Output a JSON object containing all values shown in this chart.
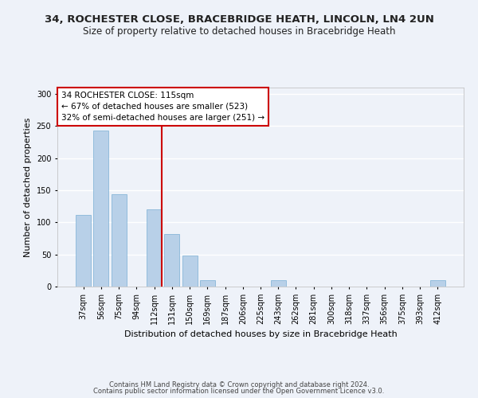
{
  "title1": "34, ROCHESTER CLOSE, BRACEBRIDGE HEATH, LINCOLN, LN4 2UN",
  "title2": "Size of property relative to detached houses in Bracebridge Heath",
  "xlabel": "Distribution of detached houses by size in Bracebridge Heath",
  "ylabel": "Number of detached properties",
  "footer1": "Contains HM Land Registry data © Crown copyright and database right 2024.",
  "footer2": "Contains public sector information licensed under the Open Government Licence v3.0.",
  "categories": [
    "37sqm",
    "56sqm",
    "75sqm",
    "94sqm",
    "112sqm",
    "131sqm",
    "150sqm",
    "169sqm",
    "187sqm",
    "206sqm",
    "225sqm",
    "243sqm",
    "262sqm",
    "281sqm",
    "300sqm",
    "318sqm",
    "337sqm",
    "356sqm",
    "375sqm",
    "393sqm",
    "412sqm"
  ],
  "values": [
    111,
    243,
    144,
    0,
    120,
    82,
    48,
    10,
    0,
    0,
    0,
    10,
    0,
    0,
    0,
    0,
    0,
    0,
    0,
    0,
    10
  ],
  "bar_color": "#b8d0e8",
  "bar_edge_color": "#7aafd4",
  "highlight_color": "#cc0000",
  "vline_index": 4,
  "annotation_title": "34 ROCHESTER CLOSE: 115sqm",
  "annotation_line1": "← 67% of detached houses are smaller (523)",
  "annotation_line2": "32% of semi-detached houses are larger (251) →",
  "annotation_box_color": "#cc0000",
  "ylim": [
    0,
    310
  ],
  "yticks": [
    0,
    50,
    100,
    150,
    200,
    250,
    300
  ],
  "background_color": "#eef2f9",
  "plot_background": "#eef2f9",
  "grid_color": "#ffffff",
  "title1_fontsize": 9.5,
  "title2_fontsize": 8.5,
  "xlabel_fontsize": 8,
  "ylabel_fontsize": 8,
  "annotation_fontsize": 7.5,
  "tick_fontsize": 7,
  "footer_fontsize": 6
}
